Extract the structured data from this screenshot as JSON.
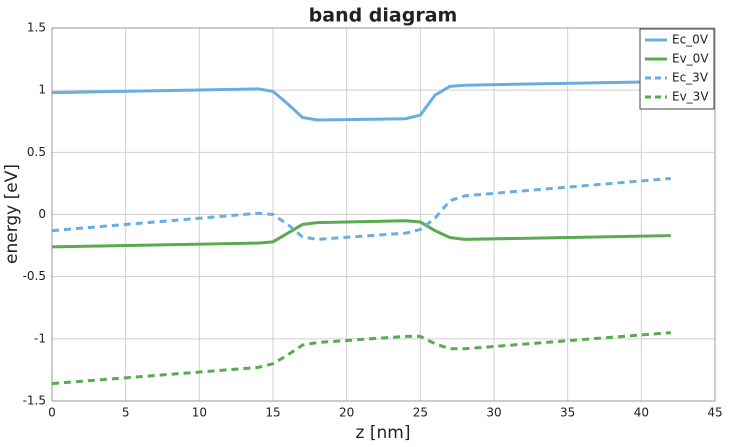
{
  "chart_data": {
    "type": "line",
    "title": "band diagram",
    "x_label": "z [nm]",
    "y_label": "energy [eV]",
    "x": [
      0,
      14,
      15,
      16,
      17,
      18,
      24,
      25,
      26,
      27,
      28,
      42
    ],
    "series": [
      {
        "name": "Ec_0V",
        "color": "#6aaee0",
        "style": "solid",
        "values": [
          0.98,
          1.01,
          0.99,
          0.89,
          0.78,
          0.76,
          0.77,
          0.8,
          0.96,
          1.03,
          1.04,
          1.07
        ]
      },
      {
        "name": "Ev_0V",
        "color": "#5aaa50",
        "style": "solid",
        "values": [
          -0.26,
          -0.23,
          -0.22,
          -0.15,
          -0.08,
          -0.065,
          -0.05,
          -0.06,
          -0.13,
          -0.185,
          -0.2,
          -0.17
        ]
      },
      {
        "name": "Ec_3V",
        "color": "#6aaee0",
        "style": "dashed",
        "values": [
          -0.13,
          0.01,
          0.0,
          -0.08,
          -0.18,
          -0.2,
          -0.15,
          -0.12,
          -0.03,
          0.11,
          0.15,
          0.29
        ]
      },
      {
        "name": "Ev_3V",
        "color": "#5aaa50",
        "style": "dashed",
        "values": [
          -1.36,
          -1.23,
          -1.2,
          -1.13,
          -1.05,
          -1.03,
          -0.98,
          -0.98,
          -1.04,
          -1.08,
          -1.08,
          -0.95
        ]
      }
    ],
    "xlim": [
      0,
      45
    ],
    "xticks": [
      0,
      5,
      10,
      15,
      20,
      25,
      30,
      35,
      40,
      45
    ],
    "ylim": [
      -1.5,
      1.5
    ],
    "yticks": [
      1.5,
      1,
      0.5,
      0,
      -0.5,
      -1,
      -1.5
    ],
    "grid": true,
    "legend": "top-right"
  }
}
